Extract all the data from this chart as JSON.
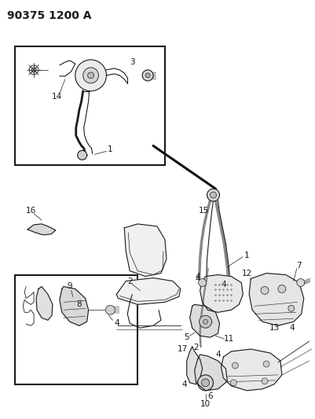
{
  "title": "90375 1200 A",
  "bg_color": "#ffffff",
  "line_color": "#1a1a1a",
  "text_color": "#1a1a1a",
  "label_fontsize": 7.5,
  "title_fontsize": 10,
  "dpi": 100,
  "figw": 4.01,
  "figh": 5.33
}
